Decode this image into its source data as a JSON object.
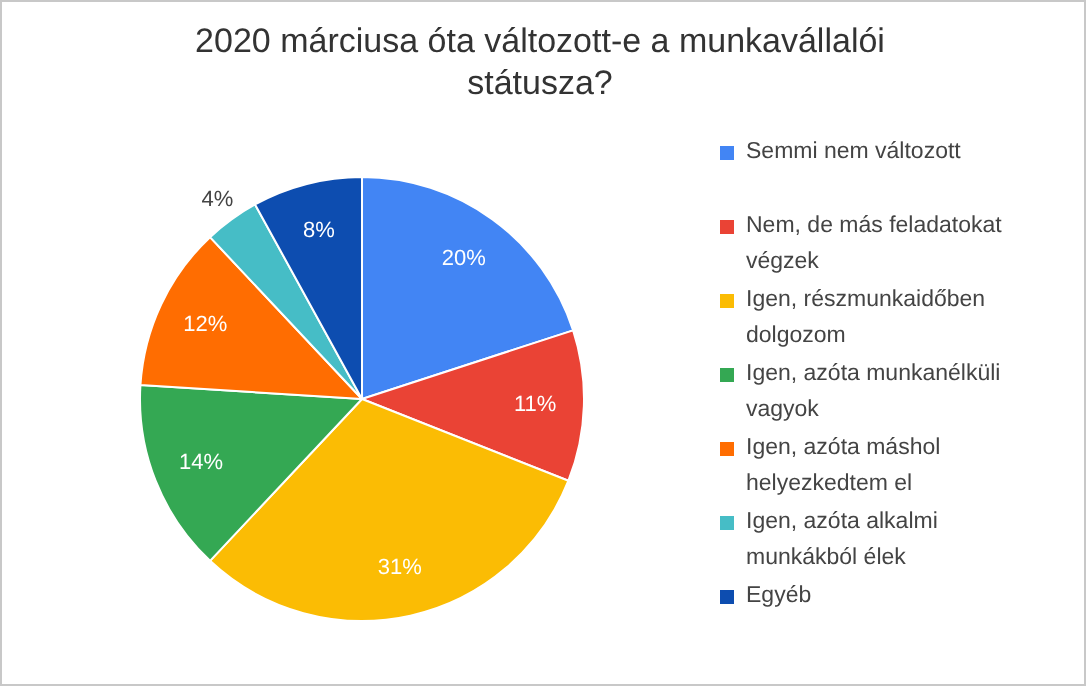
{
  "chart_data": {
    "type": "pie",
    "title": "2020 márciusa óta változott-e a munkavállalói státusza?",
    "categories": [
      "Semmi nem változott",
      "Nem, de más feladatokat végzek",
      "Igen, részmunkaidőben dolgozom",
      "Igen, azóta munkanélküli vagyok",
      "Igen, azóta máshol helyezkedtem el",
      "Igen, azóta alkalmi munkákból élek",
      "Egyéb"
    ],
    "values": [
      20,
      11,
      31,
      14,
      12,
      4,
      8
    ],
    "colors": [
      "#4285f4",
      "#ea4335",
      "#fbbc04",
      "#34a853",
      "#ff6d01",
      "#46bdc6",
      "#0d4db0"
    ],
    "value_labels": [
      "20%",
      "11%",
      "31%",
      "14%",
      "12%",
      "4%",
      "8%"
    ],
    "legend": "right"
  }
}
